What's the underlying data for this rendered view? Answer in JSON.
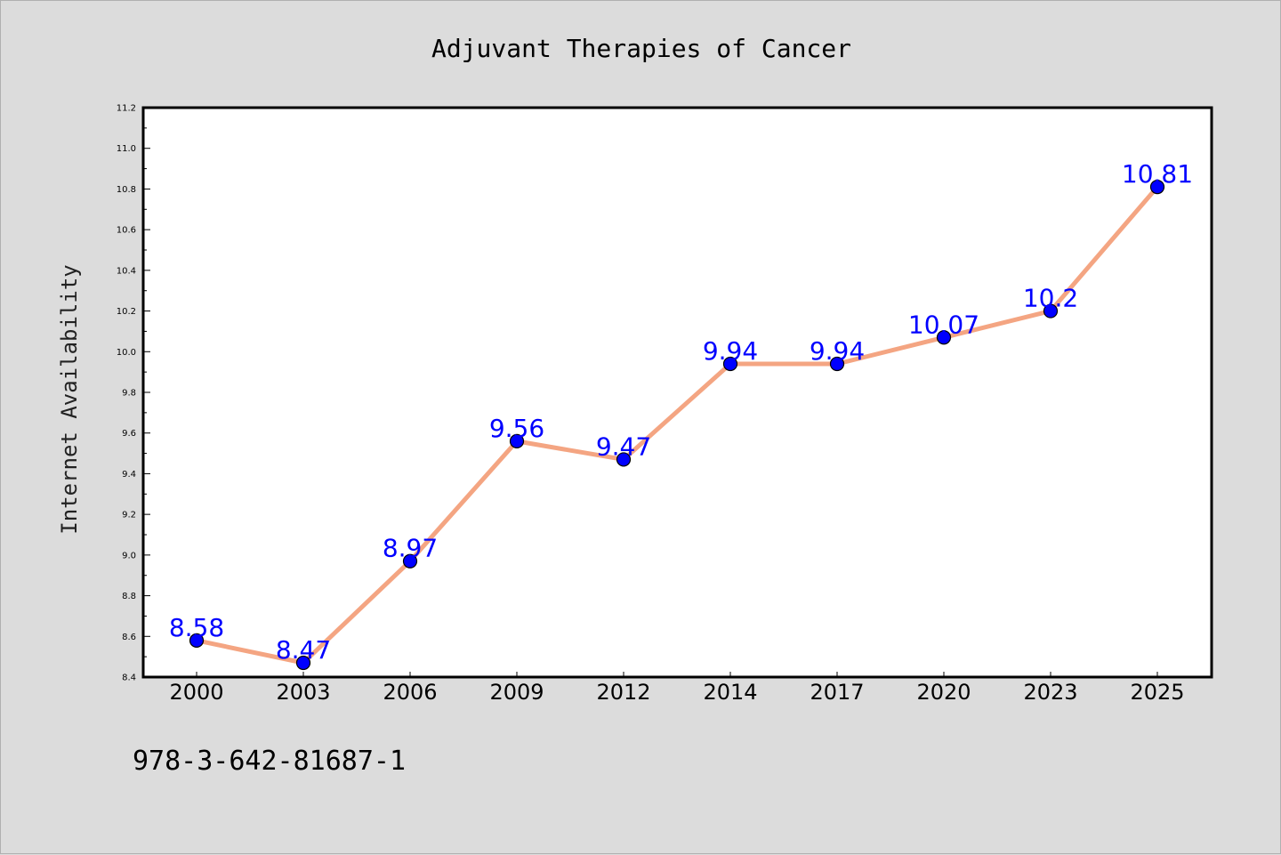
{
  "chart_data": {
    "type": "line",
    "title": "Adjuvant Therapies of Cancer",
    "xlabel": "",
    "ylabel": "Internet Availability",
    "categories": [
      "2000",
      "2003",
      "2006",
      "2009",
      "2012",
      "2014",
      "2017",
      "2020",
      "2023",
      "2025"
    ],
    "series": [
      {
        "values": [
          8.58,
          8.47,
          8.97,
          9.56,
          9.47,
          9.94,
          9.94,
          10.07,
          10.2,
          10.81
        ],
        "labels": [
          "8.58",
          "8.47",
          "8.97",
          "9.56",
          "9.47",
          "9.94",
          "9.94",
          "10.07",
          "10.2",
          "10.81"
        ],
        "line_color": "#f4a582",
        "marker_color": "#0000ff"
      }
    ],
    "ylim": [
      8.4,
      11.2
    ],
    "yticks": [
      "8.4",
      "8.6",
      "8.8",
      "9.0",
      "9.2",
      "9.4",
      "9.6",
      "9.8",
      "10.0",
      "10.2",
      "10.4",
      "10.6",
      "10.8",
      "11.0",
      "11.2"
    ],
    "grid": false,
    "legend": "none",
    "annotation_color": "#0000ff"
  },
  "footer": {
    "isbn": "978-3-642-81687-1"
  }
}
